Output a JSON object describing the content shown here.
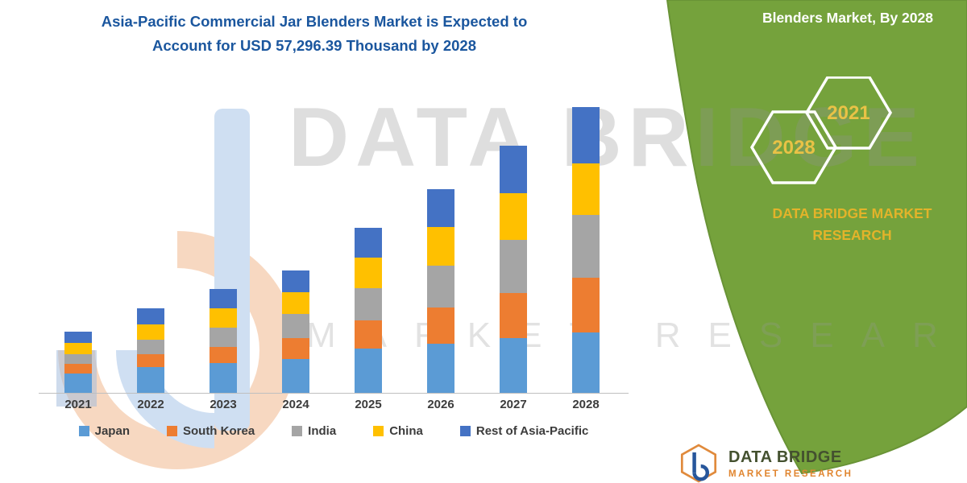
{
  "title": {
    "line1": "Asia-Pacific Commercial Jar Blenders Market is Expected to",
    "line2": "Account for USD 57,296.39 Thousand by 2028"
  },
  "side_panel": {
    "heading": "Blenders Market, By 2028",
    "hexagons": [
      "2028",
      "2021"
    ],
    "brand_line1": "DATA BRIDGE MARKET",
    "brand_line2": "RESEARCH"
  },
  "watermark": {
    "line1": "DATA BRIDGE",
    "line2": "MARKET RESEARCH"
  },
  "footer": {
    "name": "DATA BRIDGE",
    "sub": "MARKET RESEARCH"
  },
  "colors": {
    "panel_green": "#75A23C",
    "title_blue": "#1A569E",
    "hex_text_gold": "#E9C246",
    "brand_gold": "#E3B32A"
  },
  "chart_data": {
    "type": "bar",
    "stacked": true,
    "title": "Asia-Pacific Commercial Jar Blenders Market is Expected to Account for USD 57,296.39 Thousand by 2028",
    "unit": "USD Thousand",
    "categories": [
      "2021",
      "2022",
      "2023",
      "2024",
      "2025",
      "2026",
      "2027",
      "2028"
    ],
    "series": [
      {
        "name": "Japan",
        "color": "#5B9BD5",
        "values": [
          3900,
          5100,
          6000,
          6700,
          8800,
          9900,
          11000,
          12100
        ]
      },
      {
        "name": "South Korea",
        "color": "#ED7D31",
        "values": [
          1900,
          2600,
          3200,
          4200,
          5700,
          7300,
          9000,
          11000
        ]
      },
      {
        "name": "India",
        "color": "#A5A5A5",
        "values": [
          2000,
          2900,
          3900,
          4900,
          6500,
          8400,
          10600,
          12600
        ]
      },
      {
        "name": "China",
        "color": "#FFC000",
        "values": [
          2300,
          3100,
          3800,
          4400,
          6100,
          7700,
          9300,
          10300
        ]
      },
      {
        "name": "Rest of Asia-Pacific",
        "color": "#4472C4",
        "values": [
          2300,
          3200,
          3900,
          4400,
          6000,
          7600,
          9600,
          11296.39
        ]
      }
    ],
    "total_2028": 57296.39,
    "legend_position": "bottom",
    "gridlines": false
  }
}
